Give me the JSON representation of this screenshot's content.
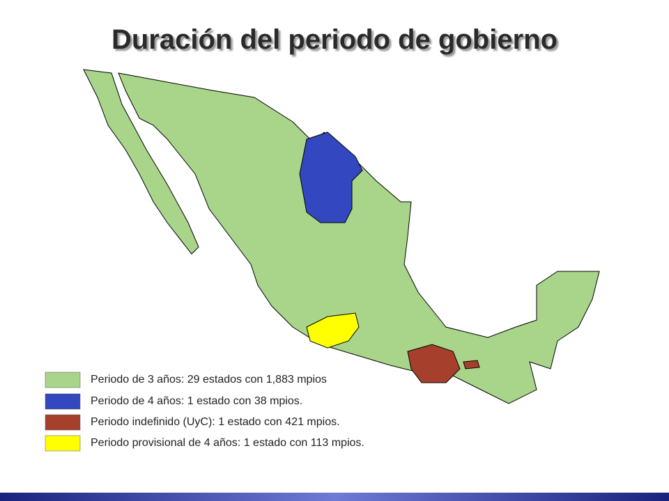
{
  "title": "Duración del periodo de gobierno",
  "legend": [
    {
      "label": "Periodo de 3 años: 29 estados con 1,883 mpios",
      "color": "#a8d58a"
    },
    {
      "label": "Periodo de 4 años: 1 estado con 38 mpios.",
      "color": "#3347c0"
    },
    {
      "label": "Periodo indefinido (UyC): 1 estado con 421 mpios.",
      "color": "#a6402c"
    },
    {
      "label": "Periodo provisional de 4 años: 1 estado con 113 mpios.",
      "color": "#ffff00"
    }
  ]
}
